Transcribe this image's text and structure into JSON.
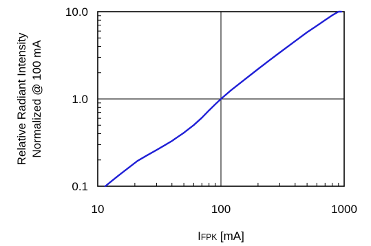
{
  "chart_data": {
    "type": "line",
    "title": "",
    "xlabel": {
      "prefix": "I",
      "subscript": "FPK",
      "suffix": " [mA]"
    },
    "ylabel": [
      "Relative Radiant Intensity",
      "Normalized @ 100 mA"
    ],
    "x_scale": "log",
    "y_scale": "log",
    "xlim": [
      10,
      1000
    ],
    "ylim": [
      0.1,
      10
    ],
    "x_ticks": [
      10,
      100,
      1000
    ],
    "x_tick_labels": [
      "10",
      "100",
      "1000"
    ],
    "y_ticks": [
      0.1,
      1,
      10
    ],
    "y_tick_labels": [
      "0.1",
      "1.0",
      "10.0"
    ],
    "grid": true,
    "line_color": "#1f1fd6",
    "series": [
      {
        "x": [
          11.5,
          13,
          15,
          18,
          21,
          25,
          30,
          35,
          40,
          45,
          50,
          55,
          60,
          70,
          80,
          90,
          100,
          120,
          150,
          200,
          250,
          300,
          400,
          500,
          600,
          700,
          800,
          900,
          950
        ],
        "y": [
          0.1,
          0.115,
          0.135,
          0.165,
          0.195,
          0.225,
          0.26,
          0.295,
          0.33,
          0.37,
          0.41,
          0.455,
          0.5,
          0.61,
          0.74,
          0.87,
          1.0,
          1.25,
          1.6,
          2.2,
          2.8,
          3.4,
          4.6,
          5.8,
          6.9,
          8.0,
          9.1,
          10.0,
          10.5
        ]
      }
    ]
  }
}
